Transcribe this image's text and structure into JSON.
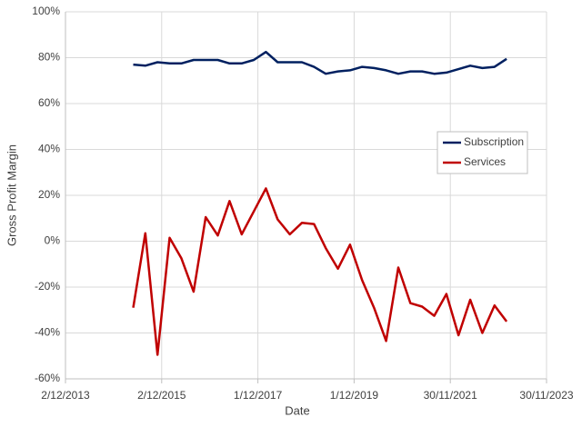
{
  "chart_data": {
    "type": "line",
    "x_label": "Date",
    "y_label": "Gross Profit Margin",
    "x": [
      "2015-04-30",
      "2015-07-31",
      "2015-10-31",
      "2016-01-31",
      "2016-04-30",
      "2016-07-31",
      "2016-10-31",
      "2017-01-31",
      "2017-04-30",
      "2017-07-31",
      "2017-10-31",
      "2018-01-31",
      "2018-04-30",
      "2018-07-31",
      "2018-10-31",
      "2019-01-31",
      "2019-04-30",
      "2019-07-31",
      "2019-10-31",
      "2020-01-31",
      "2020-04-30",
      "2020-07-31",
      "2020-10-31",
      "2021-01-31",
      "2021-04-30",
      "2021-07-31",
      "2021-10-31",
      "2022-01-31",
      "2022-04-30",
      "2022-07-31",
      "2022-10-31",
      "2023-01-31"
    ],
    "series": [
      {
        "name": "Subscription",
        "color": "#002060",
        "values": [
          77,
          76.5,
          78,
          77.5,
          77.5,
          79,
          79,
          79,
          77.5,
          77.5,
          79,
          82.5,
          78,
          78,
          78,
          76,
          73,
          74,
          74.5,
          76,
          75.5,
          74.5,
          73,
          74,
          74,
          73,
          73.5,
          75,
          76.5,
          75.5,
          76,
          79.5
        ]
      },
      {
        "name": "Services",
        "color": "#c00000",
        "values": [
          -29,
          3.5,
          -49.5,
          1.5,
          -7.5,
          -22,
          10.5,
          2.5,
          17.5,
          3,
          13,
          23,
          9.5,
          3,
          8,
          7.5,
          -3,
          -12,
          -1.5,
          -17,
          -29,
          -43.5,
          -11.5,
          -27,
          -28.5,
          -32.5,
          -23,
          -41,
          -25.5,
          -40,
          -28,
          -35
        ]
      }
    ],
    "xlim": [
      "2013-12-02",
      "2023-11-30"
    ],
    "xticks": [
      {
        "value": "2013-12-02",
        "label": "2/12/2013"
      },
      {
        "value": "2015-12-02",
        "label": "2/12/2015"
      },
      {
        "value": "2017-12-01",
        "label": "1/12/2017"
      },
      {
        "value": "2019-12-01",
        "label": "1/12/2019"
      },
      {
        "value": "2021-11-30",
        "label": "30/11/2021"
      },
      {
        "value": "2023-11-30",
        "label": "30/11/2023"
      }
    ],
    "ylim": [
      -60,
      100
    ],
    "yticks": [
      {
        "value": -60,
        "label": "-60%"
      },
      {
        "value": -40,
        "label": "-40%"
      },
      {
        "value": -20,
        "label": "-20%"
      },
      {
        "value": 0,
        "label": "0%"
      },
      {
        "value": 20,
        "label": "20%"
      },
      {
        "value": 40,
        "label": "40%"
      },
      {
        "value": 60,
        "label": "60%"
      },
      {
        "value": 80,
        "label": "80%"
      },
      {
        "value": 100,
        "label": "100%"
      }
    ],
    "grid": true,
    "legend": "right"
  }
}
